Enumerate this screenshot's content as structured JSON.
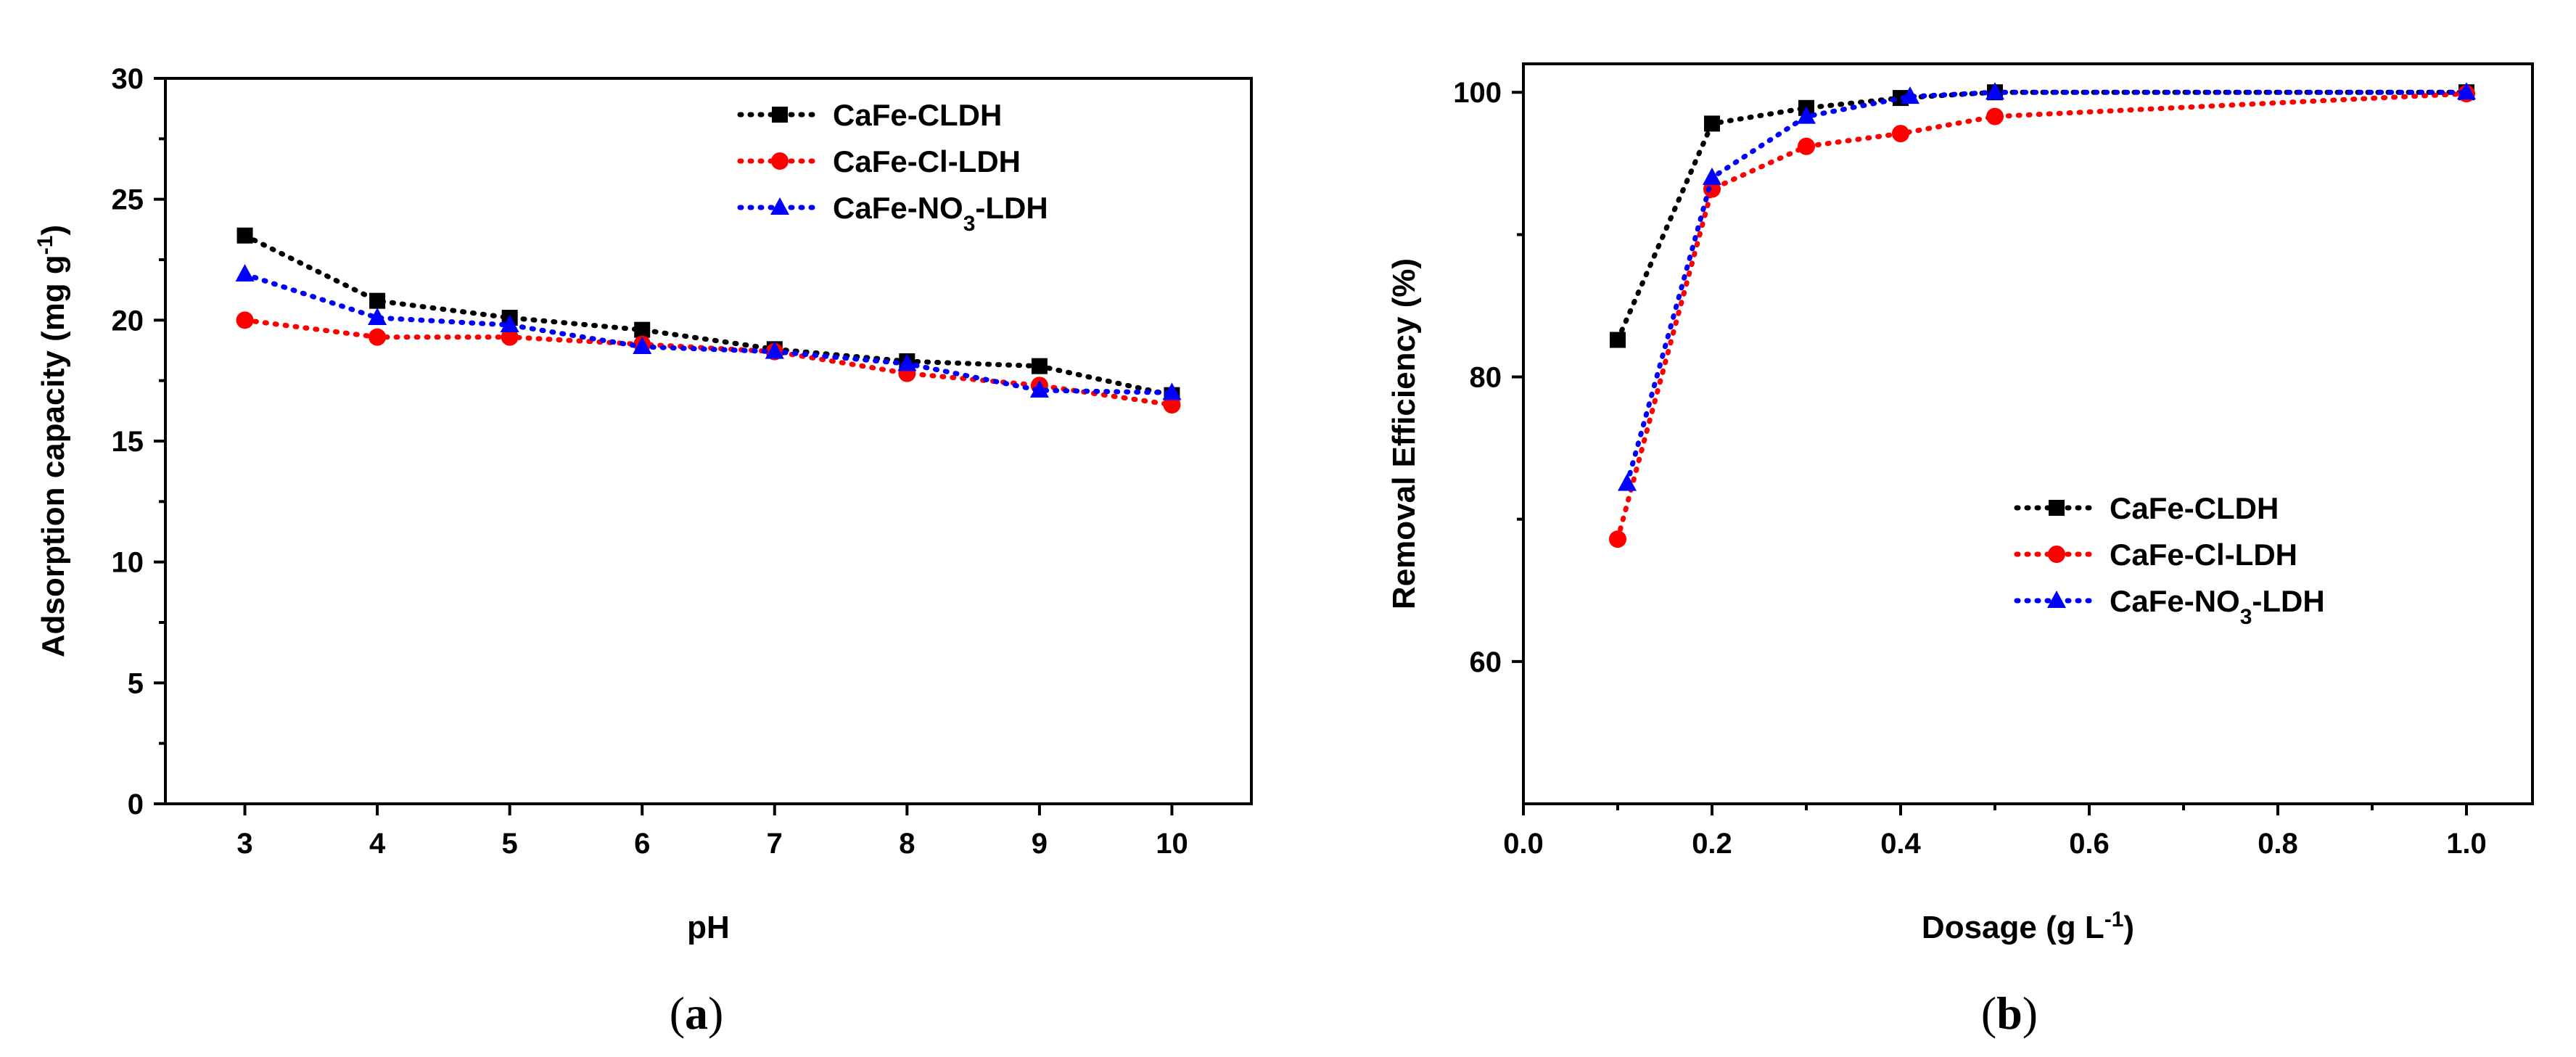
{
  "chart_data": [
    {
      "type": "line",
      "panel_label": {
        "open": "(",
        "letter": "a",
        "close": ")"
      },
      "xlabel": "pH",
      "ylabel": {
        "main": "Adsorption capacity (mg g",
        "sup": "-1",
        "close": ")"
      },
      "x": [
        3,
        4,
        5,
        6,
        7,
        8,
        9,
        10
      ],
      "xticks": [
        3,
        4,
        5,
        6,
        7,
        8,
        9,
        10
      ],
      "yticks": [
        0,
        5,
        10,
        15,
        20,
        25,
        30
      ],
      "xlim": [
        2.4,
        10.6
      ],
      "ylim": [
        0,
        30
      ],
      "legend_position": "top-right",
      "series": [
        {
          "name": "CaFe-CLDH",
          "label_parts": {
            "pre": "CaFe-CLDH",
            "sub": "",
            "post": ""
          },
          "color": "#000000",
          "marker": "square",
          "values": [
            23.5,
            20.8,
            20.1,
            19.6,
            18.8,
            18.3,
            18.1,
            16.9
          ]
        },
        {
          "name": "CaFe-Cl-LDH",
          "label_parts": {
            "pre": "CaFe-Cl-LDH",
            "sub": "",
            "post": ""
          },
          "color": "#ff0000",
          "marker": "circle",
          "values": [
            20.0,
            19.3,
            19.3,
            19.0,
            18.7,
            17.8,
            17.3,
            16.5
          ]
        },
        {
          "name": "CaFe-NO3-LDH",
          "label_parts": {
            "pre": "CaFe-NO",
            "sub": "3",
            "post": "-LDH"
          },
          "color": "#0000ff",
          "marker": "triangle",
          "values": [
            21.9,
            20.1,
            19.8,
            18.9,
            18.7,
            18.2,
            17.1,
            17.0
          ]
        }
      ]
    },
    {
      "type": "line",
      "panel_label": {
        "open": "(",
        "letter": "b",
        "close": ")"
      },
      "xlabel": {
        "main": "Dosage (g L",
        "sup": "-1",
        "close": ")"
      },
      "ylabel": "Removal Efficiency (%)",
      "xticks": [
        0.0,
        0.2,
        0.4,
        0.6,
        0.8,
        1.0
      ],
      "xtick_labels": [
        "0.0",
        "0.2",
        "0.4",
        "0.6",
        "0.8",
        "1.0"
      ],
      "yticks": [
        60,
        80,
        100
      ],
      "xlim": [
        0.0,
        1.07
      ],
      "ylim": [
        50,
        102
      ],
      "legend_position": "center-right",
      "series": [
        {
          "name": "CaFe-CLDH",
          "label_parts": {
            "pre": "CaFe-CLDH",
            "sub": "",
            "post": ""
          },
          "color": "#000000",
          "marker": "square",
          "x": [
            0.1,
            0.2,
            0.3,
            0.4,
            0.5,
            1.0
          ],
          "values": [
            82.6,
            97.8,
            98.9,
            99.6,
            100.0,
            100.0
          ]
        },
        {
          "name": "CaFe-Cl-LDH",
          "label_parts": {
            "pre": "CaFe-Cl-LDH",
            "sub": "",
            "post": ""
          },
          "color": "#ff0000",
          "marker": "circle",
          "x": [
            0.1,
            0.2,
            0.3,
            0.4,
            0.5,
            1.0
          ],
          "values": [
            68.6,
            93.2,
            96.2,
            97.1,
            98.3,
            99.9
          ]
        },
        {
          "name": "CaFe-NO3-LDH",
          "label_parts": {
            "pre": "CaFe-NO",
            "sub": "3",
            "post": "-LDH"
          },
          "color": "#0000ff",
          "marker": "triangle",
          "x": [
            0.11,
            0.2,
            0.3,
            0.41,
            0.5,
            1.0
          ],
          "values": [
            72.5,
            94.0,
            98.3,
            99.7,
            100.0,
            100.0
          ]
        }
      ]
    }
  ]
}
